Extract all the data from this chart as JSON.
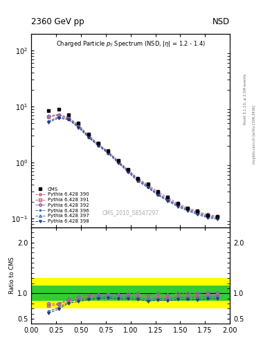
{
  "title_top_left": "2360 GeV pp",
  "title_top_right": "NSD",
  "watermark": "CMS_2010_S8547297",
  "right_label_top": "Rivet 3.1.10, ≥ 2.5M events",
  "right_label_bot": "mcplots.cern.ch [arXiv:1306.3436]",
  "ylabel_ratio": "Ratio to CMS",
  "xlim": [
    0.0,
    2.0
  ],
  "ylim_main": [
    0.07,
    200
  ],
  "ylim_ratio": [
    0.4,
    2.3
  ],
  "ratio_yticks": [
    0.5,
    1.0,
    2.0
  ],
  "cms_x": [
    0.175,
    0.275,
    0.375,
    0.475,
    0.575,
    0.675,
    0.775,
    0.875,
    0.975,
    1.075,
    1.175,
    1.275,
    1.375,
    1.475,
    1.575,
    1.675,
    1.775,
    1.875
  ],
  "cms_y": [
    8.5,
    9.0,
    7.2,
    5.0,
    3.2,
    2.2,
    1.6,
    1.1,
    0.75,
    0.52,
    0.42,
    0.3,
    0.24,
    0.185,
    0.155,
    0.135,
    0.115,
    0.108
  ],
  "pythia_x": [
    0.175,
    0.275,
    0.375,
    0.475,
    0.575,
    0.675,
    0.775,
    0.875,
    0.975,
    1.075,
    1.175,
    1.275,
    1.375,
    1.475,
    1.575,
    1.675,
    1.775,
    1.875
  ],
  "p390_y": [
    6.5,
    7.0,
    6.2,
    4.5,
    3.0,
    2.1,
    1.55,
    1.05,
    0.72,
    0.5,
    0.38,
    0.28,
    0.22,
    0.175,
    0.148,
    0.128,
    0.112,
    0.106
  ],
  "p391_y": [
    6.5,
    7.0,
    6.2,
    4.5,
    3.0,
    2.1,
    1.55,
    1.05,
    0.72,
    0.5,
    0.38,
    0.28,
    0.22,
    0.175,
    0.148,
    0.128,
    0.112,
    0.106
  ],
  "p392_y": [
    6.8,
    7.2,
    6.4,
    4.7,
    3.1,
    2.15,
    1.57,
    1.07,
    0.74,
    0.52,
    0.4,
    0.3,
    0.235,
    0.185,
    0.155,
    0.135,
    0.117,
    0.11
  ],
  "p396_y": [
    5.5,
    6.5,
    6.0,
    4.4,
    2.9,
    2.05,
    1.5,
    1.02,
    0.7,
    0.48,
    0.37,
    0.27,
    0.215,
    0.17,
    0.143,
    0.124,
    0.108,
    0.102
  ],
  "p397_y": [
    5.5,
    6.5,
    6.0,
    4.4,
    2.9,
    2.05,
    1.5,
    1.02,
    0.7,
    0.48,
    0.37,
    0.27,
    0.215,
    0.17,
    0.143,
    0.124,
    0.108,
    0.102
  ],
  "p398_y": [
    5.2,
    6.2,
    5.8,
    4.2,
    2.8,
    1.98,
    1.45,
    0.98,
    0.67,
    0.46,
    0.355,
    0.26,
    0.205,
    0.162,
    0.137,
    0.118,
    0.103,
    0.097
  ],
  "ratio390": [
    0.76,
    0.78,
    0.86,
    0.9,
    0.94,
    0.955,
    0.97,
    0.955,
    0.96,
    0.96,
    0.905,
    0.932,
    0.917,
    0.946,
    0.955,
    0.948,
    0.974,
    0.981
  ],
  "ratio391": [
    0.76,
    0.78,
    0.86,
    0.9,
    0.94,
    0.955,
    0.97,
    0.955,
    0.96,
    0.96,
    0.905,
    0.932,
    0.917,
    0.946,
    0.955,
    0.948,
    0.974,
    0.981
  ],
  "ratio392": [
    0.8,
    0.8,
    0.889,
    0.94,
    0.969,
    0.977,
    0.981,
    0.973,
    0.987,
    1.0,
    0.952,
    1.0,
    0.979,
    1.0,
    1.0,
    1.0,
    1.017,
    1.019
  ],
  "ratio396": [
    0.647,
    0.722,
    0.833,
    0.88,
    0.906,
    0.932,
    0.938,
    0.927,
    0.933,
    0.923,
    0.881,
    0.9,
    0.896,
    0.919,
    0.923,
    0.919,
    0.939,
    0.944
  ],
  "ratio397": [
    0.647,
    0.722,
    0.833,
    0.88,
    0.906,
    0.932,
    0.938,
    0.927,
    0.933,
    0.923,
    0.881,
    0.9,
    0.896,
    0.919,
    0.923,
    0.919,
    0.939,
    0.944
  ],
  "ratio398": [
    0.612,
    0.689,
    0.806,
    0.84,
    0.875,
    0.9,
    0.906,
    0.891,
    0.893,
    0.885,
    0.845,
    0.867,
    0.854,
    0.876,
    0.884,
    0.874,
    0.896,
    0.898
  ],
  "color390": "#cc6677",
  "color391": "#cc6677",
  "color392": "#8866aa",
  "color396": "#4477aa",
  "color397": "#4477aa",
  "color398": "#223388",
  "band_yellow_low": 0.7,
  "band_yellow_high": 1.3,
  "band_green_low": 0.85,
  "band_green_high": 1.15
}
